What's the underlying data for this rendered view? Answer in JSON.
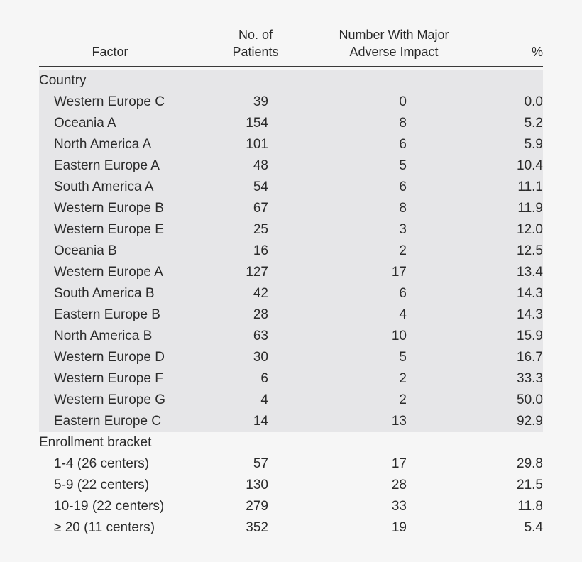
{
  "table": {
    "headers": {
      "factor": "Factor",
      "patients_line1": "No. of",
      "patients_line2": "Patients",
      "adverse_line1": "Number With Major",
      "adverse_line2": "Adverse Impact",
      "pct": "%"
    },
    "sections": [
      {
        "title": "Country",
        "shaded": true,
        "rows": [
          {
            "factor": "Western Europe C",
            "patients": "39",
            "adverse": "0",
            "pct": "0.0"
          },
          {
            "factor": "Oceania A",
            "patients": "154",
            "adverse": "8",
            "pct": "5.2"
          },
          {
            "factor": "North America A",
            "patients": "101",
            "adverse": "6",
            "pct": "5.9"
          },
          {
            "factor": "Eastern Europe A",
            "patients": "48",
            "adverse": "5",
            "pct": "10.4"
          },
          {
            "factor": "South America A",
            "patients": "54",
            "adverse": "6",
            "pct": "11.1"
          },
          {
            "factor": "Western Europe B",
            "patients": "67",
            "adverse": "8",
            "pct": "11.9"
          },
          {
            "factor": "Western Europe E",
            "patients": "25",
            "adverse": "3",
            "pct": "12.0"
          },
          {
            "factor": "Oceania B",
            "patients": "16",
            "adverse": "2",
            "pct": "12.5"
          },
          {
            "factor": "Western Europe A",
            "patients": "127",
            "adverse": "17",
            "pct": "13.4"
          },
          {
            "factor": "South America B",
            "patients": "42",
            "adverse": "6",
            "pct": "14.3"
          },
          {
            "factor": "Eastern Europe B",
            "patients": "28",
            "adverse": "4",
            "pct": "14.3"
          },
          {
            "factor": "North America B",
            "patients": "63",
            "adverse": "10",
            "pct": "15.9"
          },
          {
            "factor": "Western Europe D",
            "patients": "30",
            "adverse": "5",
            "pct": "16.7"
          },
          {
            "factor": "Western Europe F",
            "patients": "6",
            "adverse": "2",
            "pct": "33.3"
          },
          {
            "factor": "Western Europe G",
            "patients": "4",
            "adverse": "2",
            "pct": "50.0"
          },
          {
            "factor": "Eastern Europe C",
            "patients": "14",
            "adverse": "13",
            "pct": "92.9"
          }
        ]
      },
      {
        "title": "Enrollment bracket",
        "shaded": false,
        "rows": [
          {
            "factor": "1-4 (26 centers)",
            "patients": "57",
            "adverse": "17",
            "pct": "29.8"
          },
          {
            "factor": "5-9 (22 centers)",
            "patients": "130",
            "adverse": "28",
            "pct": "21.5"
          },
          {
            "factor": "10-19 (22 centers)",
            "patients": "279",
            "adverse": "33",
            "pct": "11.8"
          },
          {
            "factor": "≥ 20 (11 centers)",
            "patients": "352",
            "adverse": "19",
            "pct": "5.4"
          }
        ]
      }
    ]
  },
  "colors": {
    "page_background": "#f6f6f6",
    "shaded_section": "#e6e6e8",
    "text": "#2b2b2b",
    "rule": "#3a3a3a"
  }
}
